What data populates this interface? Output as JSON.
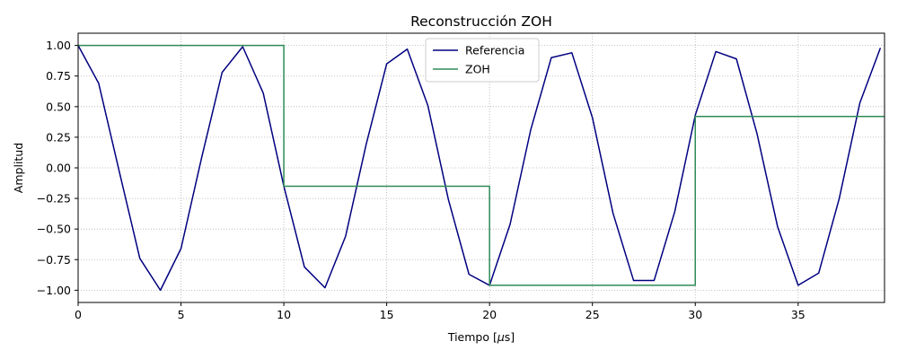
{
  "chart_data": {
    "type": "line",
    "title": "Reconstrucción ZOH",
    "xlabel": "Tiempo [$\\mu$s]",
    "xlabel_main": "Tiempo [",
    "xlabel_mu": "μ",
    "xlabel_tail": "s]",
    "ylabel": "Amplitud",
    "xlim": [
      0,
      39.2
    ],
    "ylim": [
      -1.1,
      1.1
    ],
    "x_ticks": [
      0,
      5,
      10,
      15,
      20,
      25,
      30,
      35
    ],
    "x_tick_labels": [
      "0",
      "5",
      "10",
      "15",
      "20",
      "25",
      "30",
      "35"
    ],
    "y_ticks": [
      1.0,
      0.75,
      0.5,
      0.25,
      0.0,
      -0.25,
      -0.5,
      -0.75,
      -1.0
    ],
    "y_tick_labels": [
      "1.00",
      "0.75",
      "0.50",
      "0.25",
      "0.00",
      "−0.25",
      "−0.50",
      "−0.75",
      "−1.00"
    ],
    "grid": true,
    "legend_position": "top-center",
    "series": [
      {
        "name": "Referencia",
        "color": "#000080",
        "style": "line",
        "x": [
          0,
          1,
          2,
          3,
          4,
          5,
          6,
          7,
          8,
          9,
          10,
          11,
          12,
          13,
          14,
          15,
          16,
          17,
          18,
          19,
          20,
          21,
          22,
          23,
          24,
          25,
          26,
          27,
          28,
          29,
          30,
          31,
          32,
          33,
          34,
          35,
          36,
          37,
          38,
          39
        ],
        "y": [
          1.0,
          0.69,
          -0.03,
          -0.74,
          -1.0,
          -0.66,
          0.08,
          0.78,
          0.99,
          0.61,
          -0.15,
          -0.81,
          -0.98,
          -0.56,
          0.19,
          0.85,
          0.97,
          0.51,
          -0.26,
          -0.87,
          -0.96,
          -0.46,
          0.31,
          0.9,
          0.94,
          0.41,
          -0.37,
          -0.92,
          -0.92,
          -0.36,
          0.43,
          0.95,
          0.89,
          0.28,
          -0.48,
          -0.96,
          -0.86,
          -0.25,
          0.53,
          0.98
        ]
      },
      {
        "name": "ZOH",
        "color": "#2e8b57",
        "style": "step",
        "x": [
          0,
          10,
          20,
          30,
          39.2
        ],
        "y": [
          1.0,
          -0.15,
          -0.96,
          0.42,
          0.42
        ]
      }
    ]
  }
}
